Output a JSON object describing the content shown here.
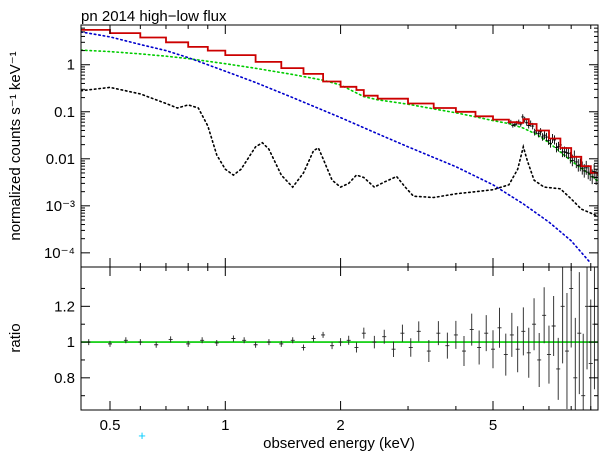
{
  "chart_data": [
    {
      "type": "line",
      "panel": "spectrum",
      "title": "pn 2014 high−low flux",
      "ylabel": "normalized counts s⁻¹ keV⁻¹",
      "x_scale": "log",
      "y_scale": "log",
      "xlim": [
        0.42,
        9.4
      ],
      "ylim": [
        5e-05,
        7
      ],
      "ytick_labels": [
        "1",
        "0.1",
        "0.01",
        "10⁻³",
        "10⁻⁴"
      ],
      "ytick_values": [
        1,
        0.1,
        0.01,
        0.001,
        0.0001
      ],
      "series": [
        {
          "style": "step",
          "color": "#cc0000",
          "points": [
            [
              0.42,
              5.5
            ],
            [
              0.5,
              4.7
            ],
            [
              0.6,
              3.8
            ],
            [
              0.7,
              3.0
            ],
            [
              0.8,
              2.4
            ],
            [
              0.9,
              2.0
            ],
            [
              1.0,
              1.6
            ],
            [
              1.2,
              1.15
            ],
            [
              1.4,
              0.85
            ],
            [
              1.6,
              0.64
            ],
            [
              1.8,
              0.44
            ],
            [
              2.0,
              0.34
            ],
            [
              2.2,
              0.29
            ],
            [
              2.3,
              0.22
            ],
            [
              2.5,
              0.19
            ],
            [
              3.0,
              0.15
            ],
            [
              3.5,
              0.12
            ],
            [
              4.0,
              0.1
            ],
            [
              4.5,
              0.08
            ],
            [
              5.0,
              0.068
            ],
            [
              5.5,
              0.06
            ],
            [
              5.8,
              0.058
            ],
            [
              6.0,
              0.07
            ],
            [
              6.2,
              0.055
            ],
            [
              6.5,
              0.04
            ],
            [
              7.0,
              0.027
            ],
            [
              7.5,
              0.017
            ],
            [
              8.0,
              0.011
            ],
            [
              8.5,
              0.007
            ],
            [
              9.0,
              0.005
            ],
            [
              9.4,
              0.0043
            ]
          ]
        },
        {
          "style": "dotted",
          "color": "#00cc00",
          "points": [
            [
              0.42,
              2.05
            ],
            [
              0.5,
              1.9
            ],
            [
              0.6,
              1.7
            ],
            [
              0.7,
              1.52
            ],
            [
              0.8,
              1.35
            ],
            [
              1.0,
              1.05
            ],
            [
              1.2,
              0.84
            ],
            [
              1.5,
              0.62
            ],
            [
              1.8,
              0.47
            ],
            [
              2.0,
              0.37
            ],
            [
              2.3,
              0.21
            ],
            [
              2.5,
              0.18
            ],
            [
              3.0,
              0.145
            ],
            [
              3.5,
              0.115
            ],
            [
              4.0,
              0.095
            ],
            [
              4.5,
              0.078
            ],
            [
              5.0,
              0.065
            ],
            [
              5.5,
              0.056
            ],
            [
              6.0,
              0.045
            ],
            [
              6.5,
              0.033
            ],
            [
              7.0,
              0.022
            ],
            [
              8.0,
              0.009
            ],
            [
              9.0,
              0.0045
            ],
            [
              9.4,
              0.0033
            ]
          ]
        },
        {
          "style": "dotted",
          "color": "#0000cc",
          "points": [
            [
              0.42,
              5.0
            ],
            [
              0.5,
              3.9
            ],
            [
              0.6,
              2.7
            ],
            [
              0.7,
              2.0
            ],
            [
              0.8,
              1.42
            ],
            [
              1.0,
              0.73
            ],
            [
              1.2,
              0.42
            ],
            [
              1.5,
              0.2
            ],
            [
              2.0,
              0.075
            ],
            [
              2.5,
              0.034
            ],
            [
              3.0,
              0.018
            ],
            [
              4.0,
              0.0068
            ],
            [
              5.0,
              0.0028
            ],
            [
              6.0,
              0.0011
            ],
            [
              7.0,
              0.00045
            ],
            [
              8.0,
              0.00018
            ],
            [
              9.0,
              6e-05
            ]
          ]
        },
        {
          "style": "dotted",
          "color": "#000000",
          "points": [
            [
              0.42,
              0.28
            ],
            [
              0.5,
              0.33
            ],
            [
              0.6,
              0.24
            ],
            [
              0.7,
              0.15
            ],
            [
              0.75,
              0.12
            ],
            [
              0.8,
              0.14
            ],
            [
              0.85,
              0.12
            ],
            [
              0.9,
              0.05
            ],
            [
              0.95,
              0.012
            ],
            [
              1.0,
              0.006
            ],
            [
              1.05,
              0.0045
            ],
            [
              1.1,
              0.006
            ],
            [
              1.2,
              0.018
            ],
            [
              1.25,
              0.022
            ],
            [
              1.3,
              0.016
            ],
            [
              1.4,
              0.0045
            ],
            [
              1.5,
              0.0025
            ],
            [
              1.6,
              0.005
            ],
            [
              1.7,
              0.015
            ],
            [
              1.75,
              0.017
            ],
            [
              1.8,
              0.01
            ],
            [
              1.9,
              0.0035
            ],
            [
              2.0,
              0.0025
            ],
            [
              2.1,
              0.003
            ],
            [
              2.2,
              0.0045
            ],
            [
              2.3,
              0.004
            ],
            [
              2.45,
              0.0025
            ],
            [
              2.6,
              0.0032
            ],
            [
              2.8,
              0.0042
            ],
            [
              2.95,
              0.0025
            ],
            [
              3.1,
              0.0016
            ],
            [
              3.5,
              0.0015
            ],
            [
              4.0,
              0.0018
            ],
            [
              4.5,
              0.002
            ],
            [
              5.0,
              0.0022
            ],
            [
              5.5,
              0.0028
            ],
            [
              5.8,
              0.006
            ],
            [
              6.0,
              0.018
            ],
            [
              6.15,
              0.009
            ],
            [
              6.4,
              0.0035
            ],
            [
              6.8,
              0.0025
            ],
            [
              7.5,
              0.0023
            ],
            [
              8.0,
              0.0014
            ],
            [
              8.5,
              0.00085
            ],
            [
              9.0,
              0.0007
            ],
            [
              9.4,
              0.0006
            ]
          ]
        }
      ]
    },
    {
      "type": "scatter",
      "panel": "ratio",
      "ylabel": "ratio",
      "xlabel": "observed energy (keV)",
      "x_scale": "log",
      "xlim": [
        0.42,
        9.4
      ],
      "ylim": [
        0.62,
        1.42
      ],
      "ytick_labels": [
        "0.8",
        "1",
        "1.2"
      ],
      "ytick_values": [
        0.8,
        1.0,
        1.2
      ],
      "xtick_labels": [
        "0.5",
        "1",
        "2",
        "5"
      ],
      "xtick_values": [
        0.5,
        1,
        2,
        5
      ],
      "reference_line": {
        "y": 1.0,
        "color": "#00cc00"
      },
      "points": [
        [
          0.44,
          1.0
        ],
        [
          0.5,
          0.99
        ],
        [
          0.55,
          1.01
        ],
        [
          0.6,
          1.0
        ],
        [
          0.66,
          0.985
        ],
        [
          0.72,
          1.015
        ],
        [
          0.8,
          0.99
        ],
        [
          0.87,
          1.01
        ],
        [
          0.95,
          0.995
        ],
        [
          1.05,
          1.02
        ],
        [
          1.12,
          1.01
        ],
        [
          1.2,
          0.985
        ],
        [
          1.3,
          1.0
        ],
        [
          1.4,
          0.99
        ],
        [
          1.5,
          1.01
        ],
        [
          1.6,
          0.97
        ],
        [
          1.7,
          1.02
        ],
        [
          1.8,
          1.04
        ],
        [
          1.9,
          0.98
        ],
        [
          2.0,
          1.0
        ],
        [
          2.1,
          1.01
        ],
        [
          2.2,
          0.97
        ],
        [
          2.3,
          1.05
        ],
        [
          2.45,
          1.0
        ],
        [
          2.6,
          1.03
        ],
        [
          2.75,
          0.96
        ],
        [
          2.9,
          1.05
        ],
        [
          3.05,
          0.97
        ],
        [
          3.2,
          1.06
        ],
        [
          3.4,
          0.95
        ],
        [
          3.6,
          1.05
        ],
        [
          3.8,
          0.98
        ],
        [
          4.0,
          1.04
        ],
        [
          4.2,
          0.95
        ],
        [
          4.4,
          1.07
        ],
        [
          4.6,
          0.97
        ],
        [
          4.8,
          1.05
        ],
        [
          5.0,
          0.96
        ],
        [
          5.2,
          1.08
        ],
        [
          5.4,
          0.93
        ],
        [
          5.6,
          1.04
        ],
        [
          5.8,
          0.96
        ],
        [
          6.0,
          1.06
        ],
        [
          6.2,
          0.94
        ],
        [
          6.4,
          1.1
        ],
        [
          6.6,
          0.9
        ],
        [
          6.8,
          1.15
        ],
        [
          7.0,
          0.93
        ],
        [
          7.2,
          1.09
        ],
        [
          7.4,
          0.85
        ],
        [
          7.6,
          1.2
        ],
        [
          7.8,
          0.95
        ],
        [
          8.0,
          1.3
        ],
        [
          8.2,
          0.8
        ],
        [
          8.4,
          1.05
        ],
        [
          8.6,
          0.7
        ],
        [
          8.8,
          1.2
        ],
        [
          9.0,
          0.88
        ],
        [
          9.2,
          1.1
        ]
      ]
    }
  ],
  "marker_glyph": "+",
  "marker_color": "#00ccff"
}
